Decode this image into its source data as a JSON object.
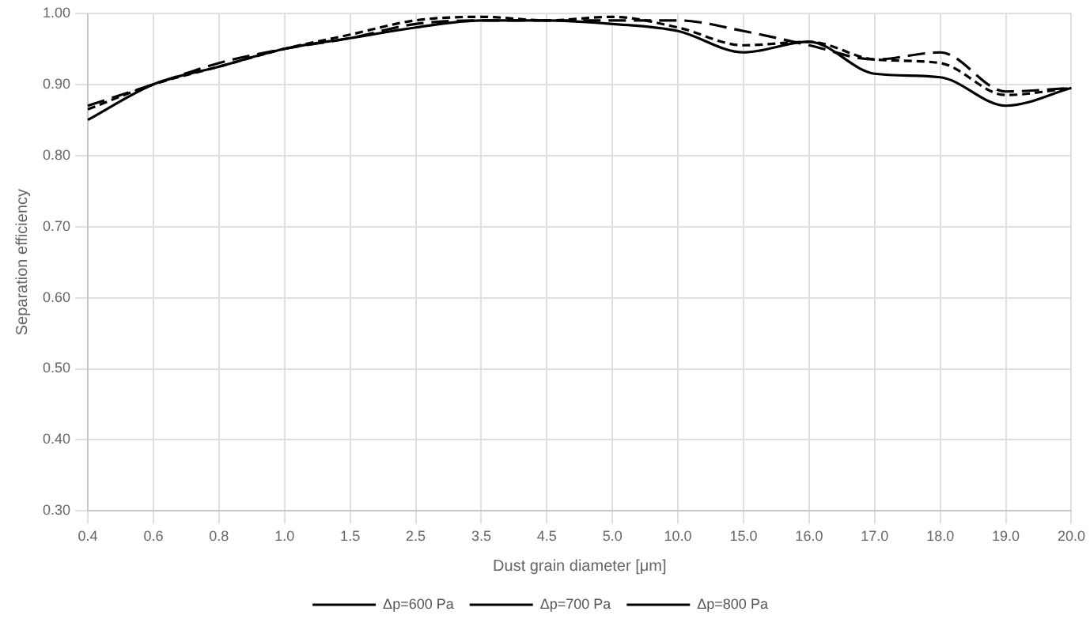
{
  "chart_data": {
    "type": "line",
    "ylabel": "Separation efficiency",
    "xlabel": "Dust grain diameter [μm]",
    "categories": [
      "0.4",
      "0.6",
      "0.8",
      "1.0",
      "1.5",
      "2.5",
      "3.5",
      "4.5",
      "5.0",
      "10.0",
      "15.0",
      "16.0",
      "17.0",
      "18.0",
      "19.0",
      "20.0"
    ],
    "ylim": [
      0.3,
      1.0
    ],
    "yticks": [
      {
        "value": 0.3,
        "label": "0.30"
      },
      {
        "value": 0.4,
        "label": "0.40"
      },
      {
        "value": 0.5,
        "label": "0.50"
      },
      {
        "value": 0.6,
        "label": "0.60"
      },
      {
        "value": 0.7,
        "label": "0.70"
      },
      {
        "value": 0.8,
        "label": "0.80"
      },
      {
        "value": 0.9,
        "label": "0.90"
      },
      {
        "value": 1.0,
        "label": "1.00"
      }
    ],
    "grid": true,
    "legend": "bottom",
    "marker": "none",
    "series": [
      {
        "name": "Δp=600 Pa",
        "color": "#000000",
        "line_style": "solid",
        "values": [
          0.85,
          0.9,
          0.925,
          0.95,
          0.965,
          0.98,
          0.99,
          0.99,
          0.985,
          0.975,
          0.945,
          0.96,
          0.915,
          0.91,
          0.87,
          0.895
        ]
      },
      {
        "name": "Δp=700 Pa",
        "color": "#000000",
        "line_style": "dashed",
        "values": [
          0.865,
          0.9,
          0.925,
          0.95,
          0.97,
          0.99,
          0.995,
          0.99,
          0.995,
          0.98,
          0.955,
          0.96,
          0.935,
          0.93,
          0.885,
          0.895
        ]
      },
      {
        "name": "Δp=800 Pa",
        "color": "#000000",
        "line_style": "longdash",
        "values": [
          0.87,
          0.9,
          0.93,
          0.95,
          0.965,
          0.985,
          0.99,
          0.99,
          0.99,
          0.99,
          0.975,
          0.955,
          0.935,
          0.945,
          0.89,
          0.895
        ]
      }
    ]
  }
}
